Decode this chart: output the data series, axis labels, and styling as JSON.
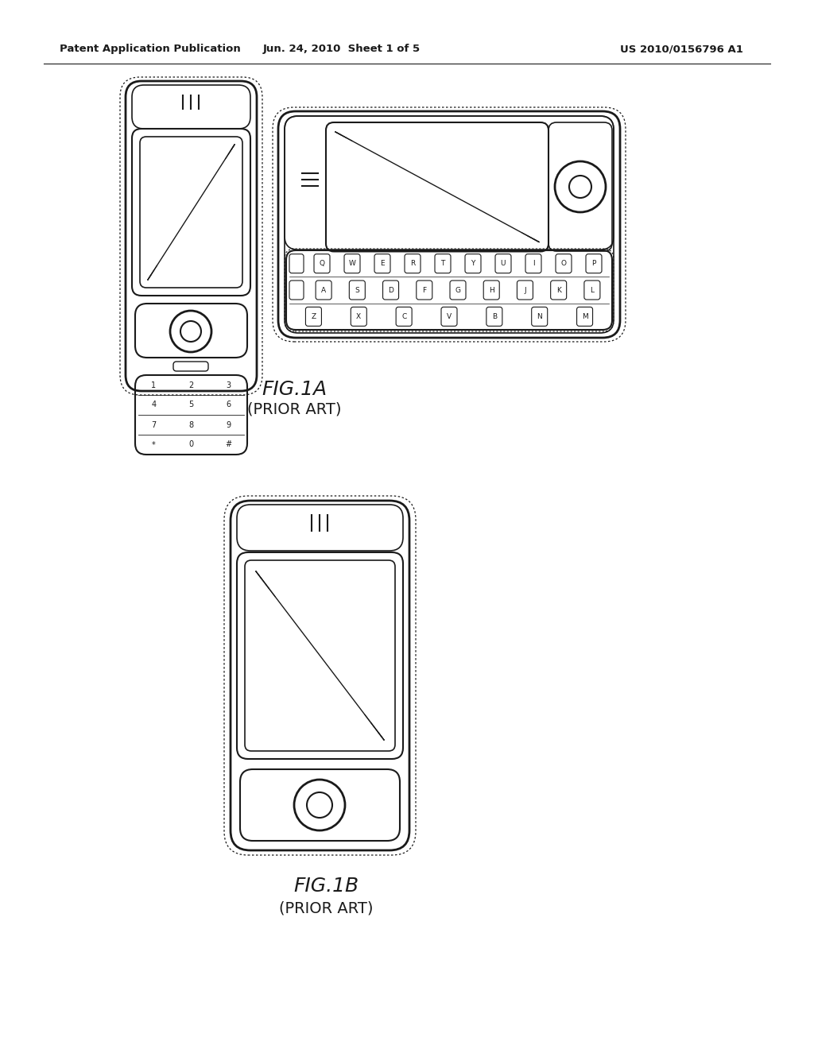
{
  "bg_color": "#ffffff",
  "line_color": "#1a1a1a",
  "header_left": "Patent Application Publication",
  "header_mid": "Jun. 24, 2010  Sheet 1 of 5",
  "header_right": "US 2010/0156796 A1",
  "fig1a_label": "FIG.1A",
  "fig1a_sub": "(PRIOR ART)",
  "fig1b_label": "FIG.1B",
  "fig1b_sub": "(PRIOR ART)"
}
